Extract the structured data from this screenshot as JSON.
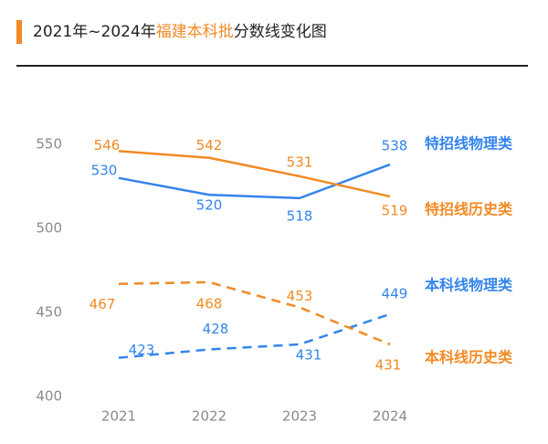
{
  "chart_data": {
    "type": "line",
    "title_parts": [
      "2021年~2024年",
      "福建本科批",
      "分数线变化图"
    ],
    "title_highlight_color": "#f28a24",
    "categories": [
      "2021",
      "2022",
      "2023",
      "2024"
    ],
    "ylim": [
      400,
      550
    ],
    "yticks": [
      400,
      450,
      500,
      550
    ],
    "series": [
      {
        "name": "特招线物理类",
        "color": "#3384ec",
        "dashed": false,
        "values": [
          530,
          520,
          518,
          538
        ]
      },
      {
        "name": "特招线历史类",
        "color": "#f28a24",
        "dashed": false,
        "values": [
          546,
          542,
          531,
          519
        ]
      },
      {
        "name": "本科线物理类",
        "color": "#3384ec",
        "dashed": true,
        "values": [
          423,
          428,
          431,
          449
        ]
      },
      {
        "name": "本科线历史类",
        "color": "#f28a24",
        "dashed": true,
        "values": [
          467,
          468,
          453,
          431
        ]
      }
    ]
  }
}
